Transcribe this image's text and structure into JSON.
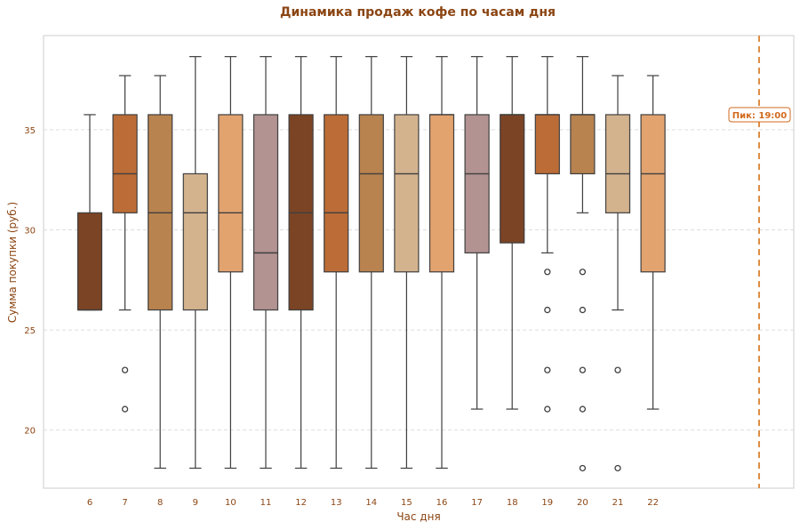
{
  "chart_data": {
    "type": "box",
    "title": "Динамика продаж кофе по часам дня",
    "xlabel": "Час дня",
    "ylabel": "Сумма покупки (руб.)",
    "ylim": [
      17.1,
      39.7
    ],
    "yticks": [
      "20",
      "25",
      "30",
      "35"
    ],
    "grid": "horizontal dashed",
    "categories": [
      "6",
      "7",
      "8",
      "9",
      "10",
      "11",
      "12",
      "13",
      "14",
      "15",
      "16",
      "17",
      "18",
      "19",
      "20",
      "21",
      "22"
    ],
    "boxes": [
      {
        "hour": "6",
        "q1": 26,
        "median": 26,
        "q3": 30.85,
        "whisker_low": 26,
        "whisker_high": 35.75,
        "outliers": [],
        "color": "#7B4424"
      },
      {
        "hour": "7",
        "q1": 30.85,
        "median": 32.8,
        "q3": 35.75,
        "whisker_low": 26,
        "whisker_high": 37.7,
        "outliers": [
          23,
          21.05
        ],
        "color": "#BC6C36"
      },
      {
        "hour": "8",
        "q1": 26,
        "median": 30.85,
        "q3": 35.75,
        "whisker_low": 18.1,
        "whisker_high": 37.7,
        "outliers": [],
        "color": "#B8834F"
      },
      {
        "hour": "9",
        "q1": 26,
        "median": 30.85,
        "q3": 32.8,
        "whisker_low": 18.1,
        "whisker_high": 38.65,
        "outliers": [],
        "color": "#D3B38E"
      },
      {
        "hour": "10",
        "q1": 27.9,
        "median": 30.85,
        "q3": 35.75,
        "whisker_low": 18.1,
        "whisker_high": 38.65,
        "outliers": [],
        "color": "#E2A36F"
      },
      {
        "hour": "11",
        "q1": 26,
        "median": 28.85,
        "q3": 35.75,
        "whisker_low": 18.1,
        "whisker_high": 38.65,
        "outliers": [],
        "color": "#B29391"
      },
      {
        "hour": "12",
        "q1": 26,
        "median": 30.85,
        "q3": 35.75,
        "whisker_low": 18.1,
        "whisker_high": 38.65,
        "outliers": [],
        "color": "#7B4424"
      },
      {
        "hour": "13",
        "q1": 27.9,
        "median": 30.85,
        "q3": 35.75,
        "whisker_low": 18.1,
        "whisker_high": 38.65,
        "outliers": [],
        "color": "#BC6C36"
      },
      {
        "hour": "14",
        "q1": 27.9,
        "median": 32.8,
        "q3": 35.75,
        "whisker_low": 18.1,
        "whisker_high": 38.65,
        "outliers": [],
        "color": "#B8834F"
      },
      {
        "hour": "15",
        "q1": 27.9,
        "median": 32.8,
        "q3": 35.75,
        "whisker_low": 18.1,
        "whisker_high": 38.65,
        "outliers": [],
        "color": "#D3B38E"
      },
      {
        "hour": "16",
        "q1": 27.9,
        "median": 35.75,
        "q3": 35.75,
        "whisker_low": 18.1,
        "whisker_high": 38.65,
        "outliers": [],
        "color": "#E2A36F"
      },
      {
        "hour": "17",
        "q1": 28.85,
        "median": 32.8,
        "q3": 35.75,
        "whisker_low": 21.05,
        "whisker_high": 38.65,
        "outliers": [],
        "color": "#B29391"
      },
      {
        "hour": "18",
        "q1": 29.35,
        "median": 35.75,
        "q3": 35.75,
        "whisker_low": 21.05,
        "whisker_high": 38.65,
        "outliers": [],
        "color": "#7B4424"
      },
      {
        "hour": "19",
        "q1": 32.8,
        "median": 35.75,
        "q3": 35.75,
        "whisker_low": 28.85,
        "whisker_high": 38.65,
        "outliers": [
          27.9,
          26,
          23,
          21.05
        ],
        "color": "#BC6C36"
      },
      {
        "hour": "20",
        "q1": 32.8,
        "median": 35.75,
        "q3": 35.75,
        "whisker_low": 30.85,
        "whisker_high": 38.65,
        "outliers": [
          27.9,
          26,
          23,
          21.05,
          18.1
        ],
        "color": "#B8834F"
      },
      {
        "hour": "21",
        "q1": 30.85,
        "median": 32.8,
        "q3": 35.75,
        "whisker_low": 26,
        "whisker_high": 37.7,
        "outliers": [
          23,
          18.1
        ],
        "color": "#D3B38E"
      },
      {
        "hour": "22",
        "q1": 27.9,
        "median": 32.8,
        "q3": 35.75,
        "whisker_low": 21.05,
        "whisker_high": 37.7,
        "outliers": [],
        "color": "#E2A36F"
      }
    ],
    "annotation": {
      "text": "Пик: 19:00",
      "y": 35.75
    },
    "peak_line_color": "#E08E45"
  }
}
